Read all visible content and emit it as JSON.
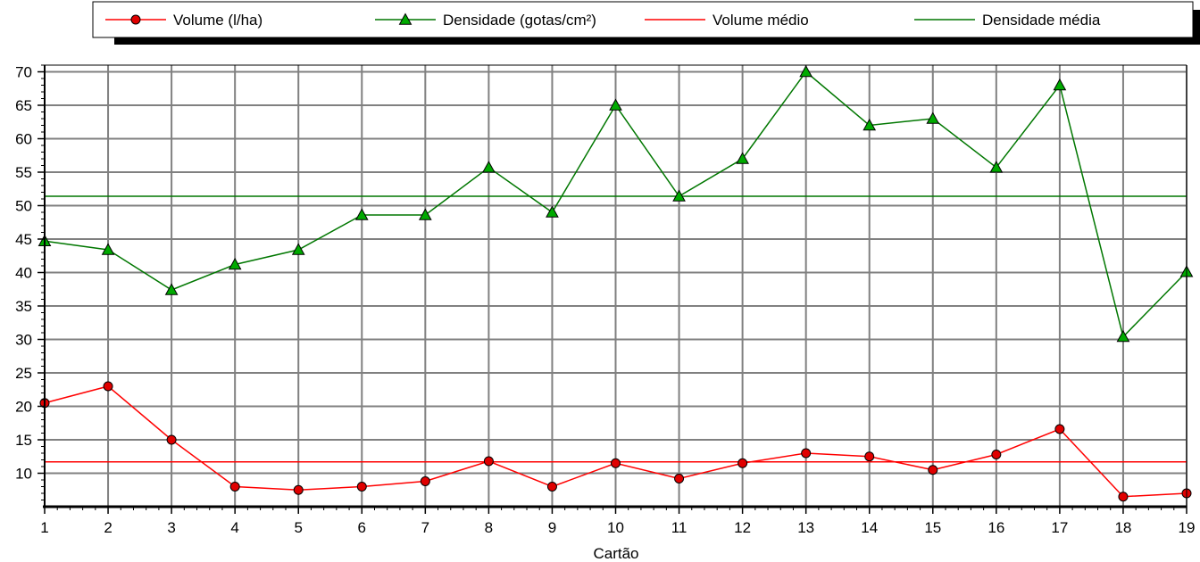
{
  "chart_data": {
    "type": "line",
    "title": "",
    "xlabel": "Cartão",
    "ylabel": "",
    "x": [
      1,
      2,
      3,
      4,
      5,
      6,
      7,
      8,
      9,
      10,
      11,
      12,
      13,
      14,
      15,
      16,
      17,
      18,
      19
    ],
    "xlim": [
      1,
      19
    ],
    "ylim": [
      5,
      71
    ],
    "yticks": [
      10,
      15,
      20,
      25,
      30,
      35,
      40,
      45,
      50,
      55,
      60,
      65,
      70
    ],
    "grid": true,
    "legend_position": "top",
    "series": [
      {
        "name": "Volume (l/ha)",
        "color": "#ff0000",
        "marker": "circle",
        "values": [
          20.5,
          23.0,
          15.0,
          8.0,
          7.5,
          8.0,
          8.8,
          11.8,
          8.0,
          11.5,
          9.2,
          11.5,
          13.0,
          12.5,
          10.5,
          12.8,
          16.6,
          6.5,
          7.0
        ]
      },
      {
        "name": "Densidade (gotas/cm²)",
        "color": "#007700",
        "marker": "triangle",
        "values": [
          44.7,
          43.4,
          37.4,
          41.2,
          43.4,
          48.6,
          48.6,
          55.7,
          49.0,
          65.0,
          51.4,
          57.0,
          70.0,
          62.0,
          63.0,
          55.7,
          68.0,
          30.4,
          40.1
        ]
      },
      {
        "name": "Volume médio",
        "color": "#ff0000",
        "marker": "none",
        "constant": 11.7
      },
      {
        "name": "Densidade média",
        "color": "#007700",
        "marker": "none",
        "constant": 51.4
      }
    ]
  }
}
